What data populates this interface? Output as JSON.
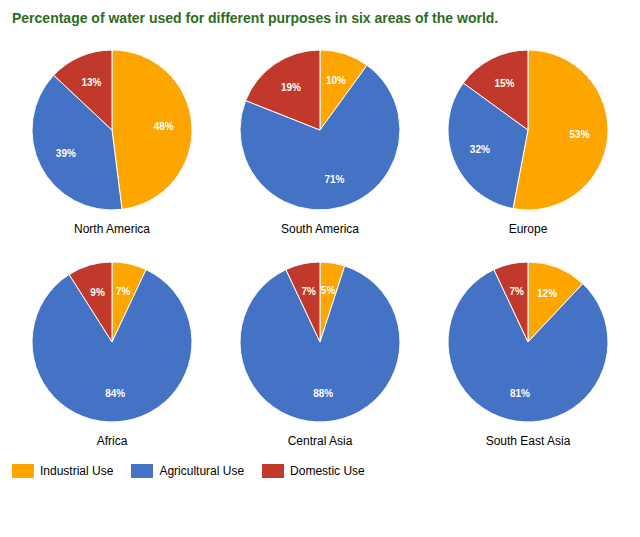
{
  "chart_data": {
    "type": "pie",
    "title": "Percentage of water used for different purposes in six areas of the world.",
    "title_color": "#2e6b1e",
    "categories": [
      "Industrial Use",
      "Agricultural Use",
      "Domestic Use"
    ],
    "colors": [
      "#FFA500",
      "#4472C4",
      "#C0392B"
    ],
    "series": [
      {
        "name": "North America",
        "values": [
          48,
          39,
          13
        ],
        "value_labels": [
          "48%",
          "39%",
          "13%"
        ]
      },
      {
        "name": "South America",
        "values": [
          10,
          71,
          19
        ],
        "value_labels": [
          "10%",
          "71%",
          "19%"
        ]
      },
      {
        "name": "Europe",
        "values": [
          53,
          32,
          15
        ],
        "value_labels": [
          "53%",
          "32%",
          "15%"
        ]
      },
      {
        "name": "Africa",
        "values": [
          7,
          84,
          9
        ],
        "value_labels": [
          "7%",
          "84%",
          "9%"
        ]
      },
      {
        "name": "Central Asia",
        "values": [
          5,
          88,
          7
        ],
        "value_labels": [
          "5%",
          "88%",
          "7%"
        ]
      },
      {
        "name": "South East Asia",
        "values": [
          12,
          81,
          7
        ],
        "value_labels": [
          "12%",
          "81%",
          "7%"
        ]
      }
    ],
    "data_labels": true,
    "legend": "lower left"
  }
}
